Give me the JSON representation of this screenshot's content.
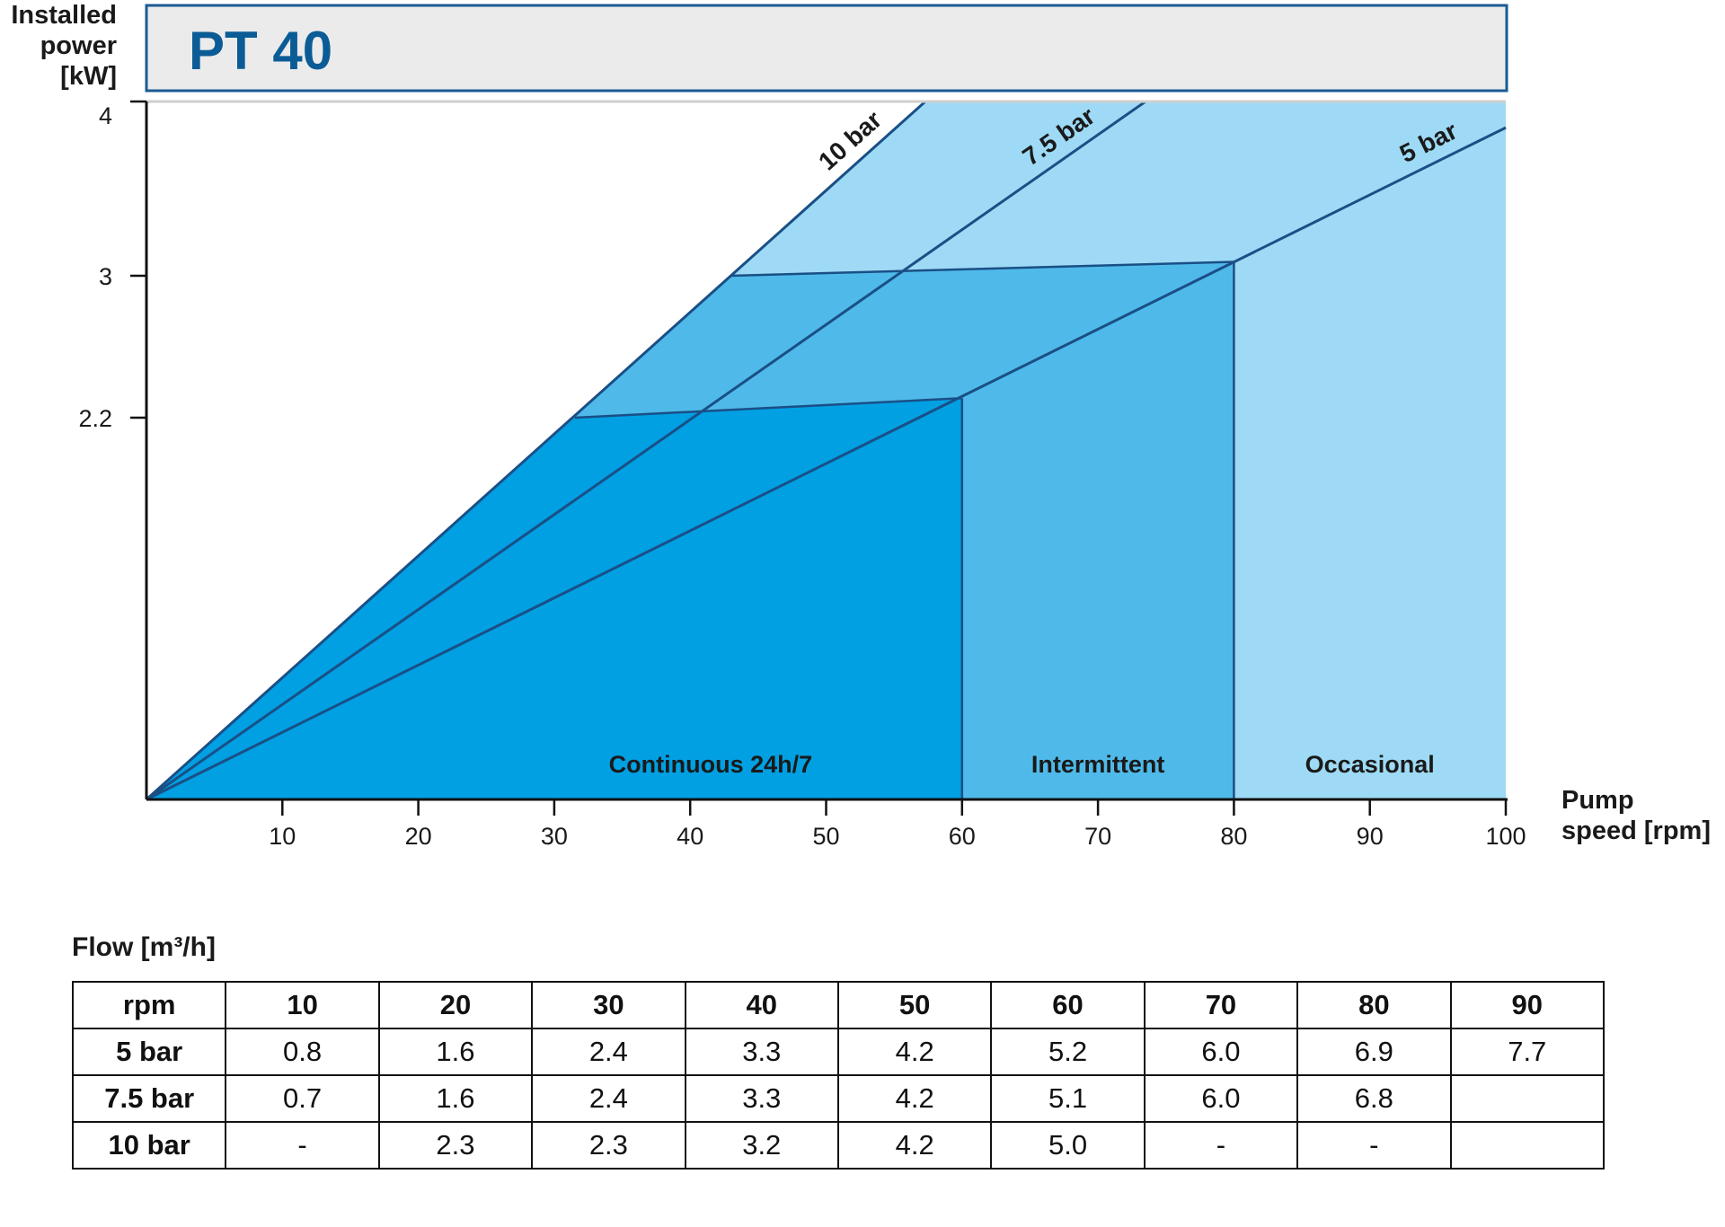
{
  "chart_data": {
    "type": "area",
    "title": "PT 40",
    "xlabel": "Pump speed [rpm]",
    "ylabel": "Installed power [kW]",
    "xlim": [
      0,
      100
    ],
    "ylim": [
      0,
      4
    ],
    "x_ticks": [
      "10",
      "20",
      "30",
      "40",
      "50",
      "60",
      "70",
      "80",
      "90",
      "100"
    ],
    "y_ticks": [
      "2.2",
      "3",
      "4"
    ],
    "series": [
      {
        "name": "10 bar",
        "x": [
          0,
          57.3
        ],
        "y": [
          0,
          4
        ]
      },
      {
        "name": "7.5 bar",
        "x": [
          0,
          73.5
        ],
        "y": [
          0,
          4
        ]
      },
      {
        "name": "5 bar",
        "x": [
          0,
          100
        ],
        "y": [
          0,
          3.85
        ]
      }
    ],
    "zones": [
      {
        "name": "Continuous 24h/7",
        "x_to": 60,
        "power_kw": 2.2,
        "color": "#00a0e3"
      },
      {
        "name": "Intermittent",
        "x_to": 80,
        "power_kw": 3,
        "color": "#4fbae9"
      },
      {
        "name": "Occasional",
        "x_to": 100,
        "power_kw": 4,
        "color": "#9edaf5"
      }
    ]
  },
  "colors": {
    "accent": "#0b5c96",
    "line": "#1a4f86",
    "title_bg": "#ebebeb"
  },
  "flow_table": {
    "title": "Flow [m³/h]",
    "header": [
      "rpm",
      "10",
      "20",
      "30",
      "40",
      "50",
      "60",
      "70",
      "80",
      "90"
    ],
    "rows": [
      [
        "5 bar",
        "0.8",
        "1.6",
        "2.4",
        "3.3",
        "4.2",
        "5.2",
        "6.0",
        "6.9",
        "7.7"
      ],
      [
        "7.5 bar",
        "0.7",
        "1.6",
        "2.4",
        "3.3",
        "4.2",
        "5.1",
        "6.0",
        "6.8",
        ""
      ],
      [
        "10 bar",
        "-",
        "2.3",
        "2.3",
        "3.2",
        "4.2",
        "5.0",
        "-",
        "-",
        ""
      ]
    ]
  }
}
